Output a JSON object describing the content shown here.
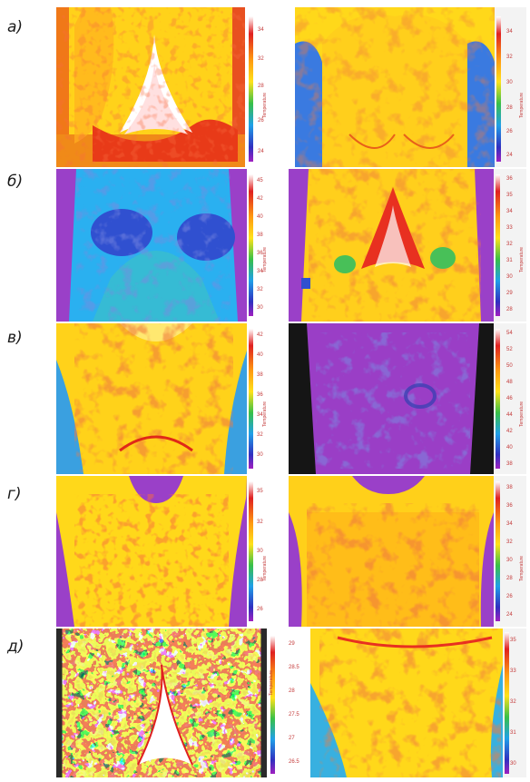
{
  "rows": [
    {
      "label": "а)",
      "panels": [
        {
          "scale_ticks": [
            "34",
            "32",
            "28",
            "26",
            "24"
          ],
          "scale_label": "Temperature"
        },
        {
          "scale_ticks": [
            "34",
            "32",
            "30",
            "28",
            "26",
            "24"
          ],
          "scale_label": "Temperature"
        }
      ]
    },
    {
      "label": "б)",
      "panels": [
        {
          "scale_ticks": [
            "45",
            "42",
            "40",
            "38",
            "36",
            "34",
            "32",
            "30"
          ],
          "scale_label": "Temperature"
        },
        {
          "scale_ticks": [
            "36",
            "35",
            "34",
            "33",
            "32",
            "31",
            "30",
            "29",
            "28"
          ],
          "scale_label": "Temperature"
        }
      ]
    },
    {
      "label": "в)",
      "panels": [
        {
          "scale_ticks": [
            "42",
            "40",
            "38",
            "36",
            "34",
            "32",
            "30"
          ],
          "scale_label": "Temperature"
        },
        {
          "scale_ticks": [
            "54",
            "52",
            "50",
            "48",
            "46",
            "44",
            "42",
            "40",
            "38"
          ],
          "scale_label": "Temperature"
        }
      ]
    },
    {
      "label": "г)",
      "panels": [
        {
          "scale_ticks": [
            "35",
            "32",
            "30",
            "28",
            "26"
          ],
          "scale_label": "Temperature"
        },
        {
          "scale_ticks": [
            "38",
            "36",
            "34",
            "32",
            "30",
            "28",
            "26",
            "24"
          ],
          "scale_label": "Temperature"
        }
      ]
    },
    {
      "label": "д)",
      "panels": [
        {
          "scale_ticks": [],
          "scale_label": ""
        },
        {
          "scale_ticks": [
            "35",
            "33",
            "32",
            "31",
            "30"
          ],
          "scale_label": ""
        }
      ]
    }
  ],
  "mid_scale": {
    "ticks": [
      "29",
      "28.5",
      "28",
      "27.5",
      "27",
      "26.5"
    ],
    "label": "Temperature"
  }
}
